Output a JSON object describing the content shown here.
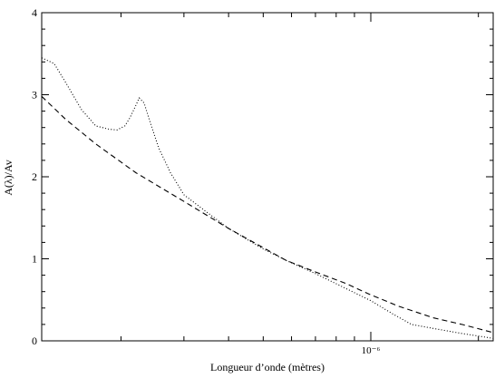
{
  "chart_data": {
    "type": "line",
    "title": "",
    "xlabel": "Longueur d’onde (mètres)",
    "ylabel": "A(λ)/Av",
    "xscale": "log",
    "xlim": [
      1.2e-07,
      2.2e-06
    ],
    "ylim": [
      0,
      4
    ],
    "grid": false,
    "legend": "none",
    "x_ticks": [
      {
        "value": 1e-06,
        "label": "10⁻⁶"
      }
    ],
    "y_ticks": [
      {
        "value": 0,
        "label": "0"
      },
      {
        "value": 1,
        "label": "1"
      },
      {
        "value": 2,
        "label": "2"
      },
      {
        "value": 3,
        "label": "3"
      },
      {
        "value": 4,
        "label": "4"
      }
    ],
    "series": [
      {
        "style": "dotted",
        "color": "#000000",
        "points": [
          [
            1.2e-07,
            3.45
          ],
          [
            1.3e-07,
            3.38
          ],
          [
            1.4e-07,
            3.15
          ],
          [
            1.55e-07,
            2.82
          ],
          [
            1.7e-07,
            2.62
          ],
          [
            1.85e-07,
            2.58
          ],
          [
            1.95e-07,
            2.57
          ],
          [
            2.05e-07,
            2.62
          ],
          [
            2.12e-07,
            2.72
          ],
          [
            2.2e-07,
            2.87
          ],
          [
            2.25e-07,
            2.96
          ],
          [
            2.32e-07,
            2.9
          ],
          [
            2.42e-07,
            2.65
          ],
          [
            2.55e-07,
            2.35
          ],
          [
            2.75e-07,
            2.05
          ],
          [
            3e-07,
            1.78
          ],
          [
            3.4e-07,
            1.6
          ],
          [
            4e-07,
            1.37
          ],
          [
            5e-07,
            1.12
          ],
          [
            5.8e-07,
            0.98
          ],
          [
            7e-07,
            0.82
          ],
          [
            8.5e-07,
            0.64
          ],
          [
            1e-06,
            0.49
          ],
          [
            1.15e-06,
            0.33
          ],
          [
            1.3e-06,
            0.2
          ],
          [
            1.5e-06,
            0.15
          ],
          [
            1.8e-06,
            0.09
          ],
          [
            2.2e-06,
            0.03
          ]
        ]
      },
      {
        "style": "dashed",
        "color": "#000000",
        "points": [
          [
            1.2e-07,
            2.98
          ],
          [
            1.4e-07,
            2.7
          ],
          [
            1.7e-07,
            2.4
          ],
          [
            2.2e-07,
            2.05
          ],
          [
            3e-07,
            1.7
          ],
          [
            4e-07,
            1.37
          ],
          [
            5.8e-07,
            0.98
          ],
          [
            7e-07,
            0.84
          ],
          [
            8.5e-07,
            0.7
          ],
          [
            1e-06,
            0.56
          ],
          [
            1.2e-06,
            0.42
          ],
          [
            1.5e-06,
            0.28
          ],
          [
            1.8e-06,
            0.2
          ],
          [
            2.2e-06,
            0.1
          ]
        ]
      }
    ]
  }
}
